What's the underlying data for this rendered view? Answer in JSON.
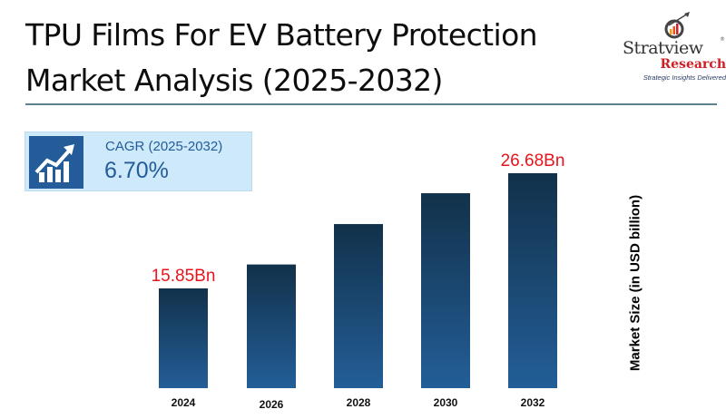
{
  "header": {
    "title_line1": "TPU Films For EV Battery Protection",
    "title_line2": "Market Analysis (2025-2032)"
  },
  "logo": {
    "brand": "Stratview",
    "registered": "®",
    "sub": "Research",
    "tagline": "Strategic Insights Delivered",
    "icon": "magnifier-growth-chart-icon"
  },
  "cagr": {
    "icon": "rising-bar-chart-arrow-icon",
    "label": "CAGR (2025-2032)",
    "value": "6.70%"
  },
  "colors": {
    "bar_top": "#12314a",
    "bar_bottom": "#235e98",
    "value_label": "#e8141c",
    "accent": "#235c99"
  },
  "chart_data": {
    "type": "bar",
    "title": "TPU Films For EV Battery Protection Market Analysis (2025-2032)",
    "categories": [
      "2024",
      "2026",
      "2028",
      "2030",
      "2032"
    ],
    "values": [
      15.85,
      18.1,
      21.9,
      24.8,
      26.68
    ],
    "data_labels": [
      "15.85Bn",
      "",
      "",
      "",
      "26.68Bn"
    ],
    "xlabel": "",
    "ylabel": "Market Size (in USD billion)",
    "ylim": [
      0,
      28
    ],
    "grid": false,
    "legend": "none"
  }
}
